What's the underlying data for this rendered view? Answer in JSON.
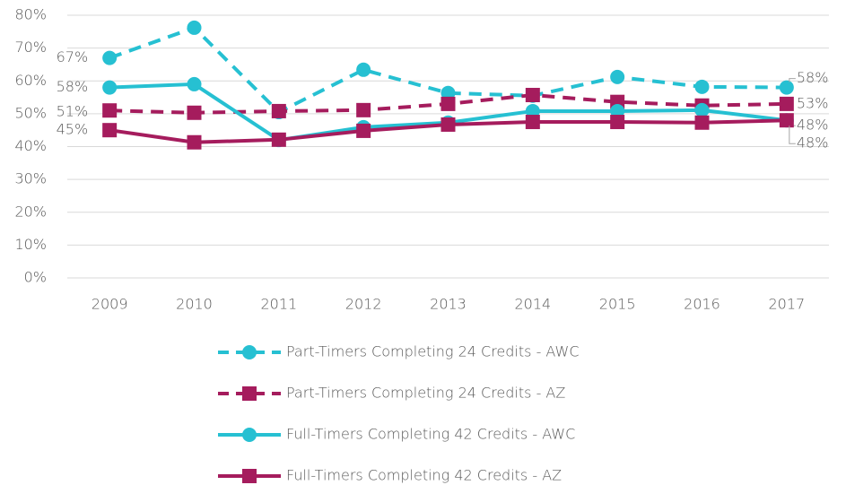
{
  "chart_data": {
    "type": "line",
    "categories": [
      "2009",
      "2010",
      "2011",
      "2012",
      "2013",
      "2014",
      "2015",
      "2016",
      "2017"
    ],
    "series": [
      {
        "name": "Part-Timers Completing 24 Credits - AWC",
        "color": "#26c0d2",
        "dash": true,
        "marker": "circle",
        "values": [
          67,
          76.2,
          50.5,
          63.4,
          56.3,
          55.5,
          61.2,
          58.2,
          58
        ],
        "value_labels": [
          "67%",
          null,
          null,
          null,
          null,
          null,
          null,
          null,
          "58%"
        ]
      },
      {
        "name": "Part-Timers Completing 24 Credits - AZ",
        "color": "#a51c5d",
        "dash": true,
        "marker": "square",
        "values": [
          51,
          50.3,
          50.8,
          51.1,
          53,
          55.7,
          53.6,
          52.5,
          53
        ],
        "value_labels": [
          "51%",
          null,
          null,
          null,
          null,
          null,
          null,
          null,
          "53%"
        ]
      },
      {
        "name": "Full-Timers Completing 42 Credits - AWC",
        "color": "#26c0d2",
        "dash": false,
        "marker": "circle",
        "values": [
          58,
          59,
          42,
          45.9,
          47.3,
          50.8,
          50.8,
          51.1,
          48
        ],
        "value_labels": [
          "58%",
          null,
          null,
          null,
          null,
          null,
          null,
          null,
          "48%"
        ]
      },
      {
        "name": "Full-Timers Completing 42 Credits - AZ",
        "color": "#a51c5d",
        "dash": false,
        "marker": "square",
        "values": [
          45,
          41.3,
          42.1,
          44.8,
          46.7,
          47.5,
          47.5,
          47.3,
          48
        ],
        "value_labels": [
          "45%",
          null,
          null,
          null,
          null,
          null,
          null,
          null,
          "48%"
        ]
      }
    ],
    "ylim": [
      0,
      80
    ],
    "yticks": [
      {
        "value": 0,
        "label": "0%"
      },
      {
        "value": 10,
        "label": "10%"
      },
      {
        "value": 20,
        "label": "20%"
      },
      {
        "value": 30,
        "label": "30%"
      },
      {
        "value": 40,
        "label": "40%"
      },
      {
        "value": 50,
        "label": "50%"
      },
      {
        "value": 60,
        "label": "60%"
      },
      {
        "value": 70,
        "label": "70%"
      },
      {
        "value": 80,
        "label": "80%"
      }
    ],
    "grid": true,
    "legend": "bottom"
  }
}
